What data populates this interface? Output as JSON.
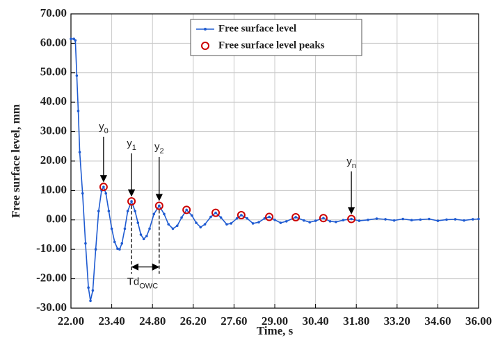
{
  "chart_data": {
    "type": "line",
    "x_label": "Time, s",
    "y_label": "Free surface level, mm",
    "xlim": [
      22.0,
      36.0
    ],
    "ylim": [
      -30,
      70
    ],
    "xticks": [
      {
        "value": 22.0,
        "label": "22.00"
      },
      {
        "value": 23.4,
        "label": "23.40"
      },
      {
        "value": 24.8,
        "label": "24.80"
      },
      {
        "value": 26.2,
        "label": "26.20"
      },
      {
        "value": 27.6,
        "label": "27.60"
      },
      {
        "value": 29.0,
        "label": "29.00"
      },
      {
        "value": 30.4,
        "label": "30.40"
      },
      {
        "value": 31.8,
        "label": "31.80"
      },
      {
        "value": 33.2,
        "label": "33.20"
      },
      {
        "value": 34.6,
        "label": "34.60"
      },
      {
        "value": 36.0,
        "label": "36.00"
      }
    ],
    "yticks": [
      {
        "value": -30,
        "label": "-30.00"
      },
      {
        "value": -20,
        "label": "-20.00"
      },
      {
        "value": -10,
        "label": "-10.00"
      },
      {
        "value": 0,
        "label": "0.00"
      },
      {
        "value": 10,
        "label": "10.00"
      },
      {
        "value": 20,
        "label": "20.00"
      },
      {
        "value": 30,
        "label": "30.00"
      },
      {
        "value": 40,
        "label": "40.00"
      },
      {
        "value": 50,
        "label": "50.00"
      },
      {
        "value": 60,
        "label": "60.00"
      },
      {
        "value": 70,
        "label": "70.00"
      }
    ],
    "grid": true,
    "legend": "top",
    "series": [
      {
        "name": "Free surface level",
        "color": "#1f5bd1",
        "marker": "dot",
        "x": [
          22.0,
          22.1,
          22.15,
          22.2,
          22.25,
          22.3,
          22.4,
          22.5,
          22.6,
          22.67,
          22.75,
          22.85,
          22.95,
          23.05,
          23.12,
          23.2,
          23.3,
          23.4,
          23.5,
          23.6,
          23.67,
          23.75,
          23.85,
          23.95,
          24.08,
          24.2,
          24.3,
          24.4,
          24.5,
          24.6,
          24.7,
          24.85,
          25.03,
          25.2,
          25.35,
          25.5,
          25.65,
          25.8,
          25.97,
          26.15,
          26.3,
          26.45,
          26.6,
          26.8,
          26.97,
          27.15,
          27.35,
          27.5,
          27.7,
          27.85,
          28.05,
          28.25,
          28.45,
          28.65,
          28.81,
          29.0,
          29.2,
          29.4,
          29.72,
          30.0,
          30.2,
          30.4,
          30.67,
          30.9,
          31.1,
          31.35,
          31.63,
          31.9,
          32.2,
          32.5,
          32.8,
          33.1,
          33.4,
          33.7,
          34.0,
          34.3,
          34.6,
          34.9,
          35.2,
          35.5,
          35.8,
          36.0
        ],
        "values": [
          61.5,
          61.5,
          61.0,
          49,
          37,
          23,
          9,
          -8,
          -23,
          -27.5,
          -24,
          -10,
          3,
          10,
          11.2,
          9,
          3,
          -3,
          -7.5,
          -9.8,
          -10,
          -8,
          -3,
          3,
          6.3,
          3,
          -1,
          -5,
          -6.5,
          -5.5,
          -3,
          2,
          4.8,
          2,
          -1.5,
          -3,
          -2,
          0.8,
          3.4,
          1.5,
          -1,
          -2.5,
          -1.5,
          1,
          2.4,
          0.8,
          -1.5,
          -1.2,
          0.5,
          1.6,
          0.5,
          -1.2,
          -0.8,
          0.5,
          1.0,
          0,
          -1,
          -0.5,
          0.9,
          -0.2,
          -0.8,
          -0.3,
          0.6,
          -0.5,
          -0.7,
          -0.1,
          0.3,
          -0.3,
          0,
          0.4,
          0.2,
          -0.2,
          0.3,
          -0.1,
          0.1,
          0.3,
          -0.3,
          0.1,
          0.2,
          -0.2,
          0.2,
          0.3
        ]
      },
      {
        "name": "Free surface level peaks",
        "color": "#cc0000",
        "marker": "circle",
        "x": [
          23.12,
          24.08,
          25.03,
          25.97,
          26.97,
          27.85,
          28.81,
          29.72,
          30.67,
          31.63
        ],
        "values": [
          11.2,
          6.3,
          4.8,
          3.4,
          2.4,
          1.6,
          1.0,
          0.9,
          0.6,
          0.3
        ]
      }
    ],
    "annotations": [
      {
        "text": "y",
        "sub": "0"
      },
      {
        "text": "y",
        "sub": "1"
      },
      {
        "text": "y",
        "sub": "2"
      },
      {
        "text": "y",
        "sub": "n"
      },
      {
        "text": "Td",
        "sub": "OWC"
      }
    ]
  }
}
